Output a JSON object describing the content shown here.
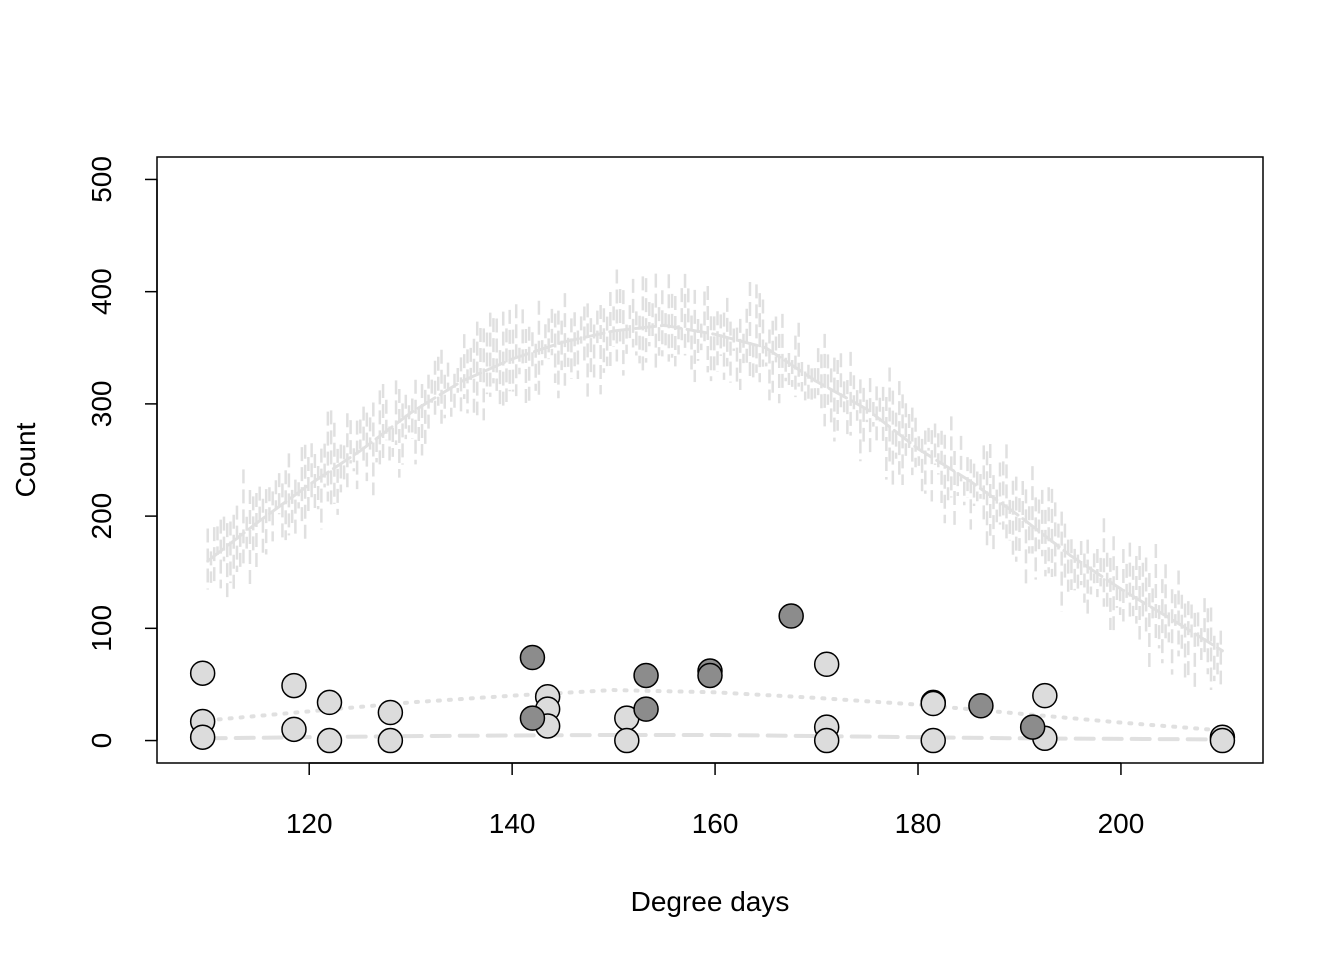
{
  "chart_data": {
    "type": "scatter",
    "title": "",
    "xlabel": "Degree days",
    "ylabel": "Count",
    "xlim": [
      105,
      214
    ],
    "ylim": [
      -20,
      520
    ],
    "x_ticks": [
      120,
      140,
      160,
      180,
      200
    ],
    "y_ticks": [
      0,
      100,
      200,
      300,
      400,
      500
    ],
    "grid": false,
    "legend": "none",
    "colors": {
      "point_light": "#dcdcdc",
      "point_dark": "#8c8c8c",
      "point_edge": "#000000",
      "curve": "#e0e0e0",
      "axis": "#000000"
    },
    "series": [
      {
        "style": "points-light",
        "points": [
          {
            "x": 109.5,
            "y": 60
          },
          {
            "x": 109.5,
            "y": 17
          },
          {
            "x": 109.5,
            "y": 3
          },
          {
            "x": 118.5,
            "y": 49
          },
          {
            "x": 118.5,
            "y": 10
          },
          {
            "x": 122,
            "y": 34
          },
          {
            "x": 122,
            "y": 0
          },
          {
            "x": 128,
            "y": 25
          },
          {
            "x": 128,
            "y": 0
          },
          {
            "x": 143.5,
            "y": 39
          },
          {
            "x": 143.5,
            "y": 28
          },
          {
            "x": 143.5,
            "y": 13
          },
          {
            "x": 151.3,
            "y": 20
          },
          {
            "x": 151.3,
            "y": 0
          },
          {
            "x": 171,
            "y": 68
          },
          {
            "x": 171,
            "y": 12
          },
          {
            "x": 171,
            "y": 0
          },
          {
            "x": 181.5,
            "y": 34
          },
          {
            "x": 181.5,
            "y": 33
          },
          {
            "x": 181.5,
            "y": 0
          },
          {
            "x": 192.5,
            "y": 40
          },
          {
            "x": 192.5,
            "y": 2
          },
          {
            "x": 210,
            "y": 3
          },
          {
            "x": 210,
            "y": 0
          }
        ]
      },
      {
        "style": "points-dark",
        "points": [
          {
            "x": 142,
            "y": 74
          },
          {
            "x": 142,
            "y": 20
          },
          {
            "x": 153.2,
            "y": 58
          },
          {
            "x": 153.2,
            "y": 28
          },
          {
            "x": 159.5,
            "y": 62
          },
          {
            "x": 159.5,
            "y": 58
          },
          {
            "x": 167.5,
            "y": 111
          },
          {
            "x": 186.2,
            "y": 31
          },
          {
            "x": 191.3,
            "y": 12
          }
        ]
      },
      {
        "style": "noisy-dashed-curve",
        "points": [
          {
            "x": 110,
            "y": 160
          },
          {
            "x": 115,
            "y": 195
          },
          {
            "x": 120,
            "y": 228
          },
          {
            "x": 125,
            "y": 258
          },
          {
            "x": 130,
            "y": 292
          },
          {
            "x": 135,
            "y": 320
          },
          {
            "x": 140,
            "y": 340
          },
          {
            "x": 145,
            "y": 355
          },
          {
            "x": 150,
            "y": 365
          },
          {
            "x": 155,
            "y": 370
          },
          {
            "x": 160,
            "y": 362
          },
          {
            "x": 165,
            "y": 350
          },
          {
            "x": 170,
            "y": 320
          },
          {
            "x": 175,
            "y": 295
          },
          {
            "x": 180,
            "y": 260
          },
          {
            "x": 185,
            "y": 232
          },
          {
            "x": 190,
            "y": 200
          },
          {
            "x": 195,
            "y": 165
          },
          {
            "x": 200,
            "y": 135
          },
          {
            "x": 205,
            "y": 108
          },
          {
            "x": 210,
            "y": 80
          }
        ]
      },
      {
        "style": "dotted-curve",
        "points": [
          {
            "x": 110,
            "y": 18
          },
          {
            "x": 120,
            "y": 26
          },
          {
            "x": 130,
            "y": 34
          },
          {
            "x": 140,
            "y": 40
          },
          {
            "x": 150,
            "y": 45
          },
          {
            "x": 160,
            "y": 43
          },
          {
            "x": 170,
            "y": 38
          },
          {
            "x": 180,
            "y": 32
          },
          {
            "x": 190,
            "y": 24
          },
          {
            "x": 200,
            "y": 16
          },
          {
            "x": 210,
            "y": 9
          }
        ]
      },
      {
        "style": "dashed-curve",
        "points": [
          {
            "x": 110,
            "y": 2
          },
          {
            "x": 130,
            "y": 4
          },
          {
            "x": 150,
            "y": 5
          },
          {
            "x": 160,
            "y": 5
          },
          {
            "x": 170,
            "y": 4
          },
          {
            "x": 190,
            "y": 2
          },
          {
            "x": 210,
            "y": 1
          }
        ]
      }
    ]
  }
}
